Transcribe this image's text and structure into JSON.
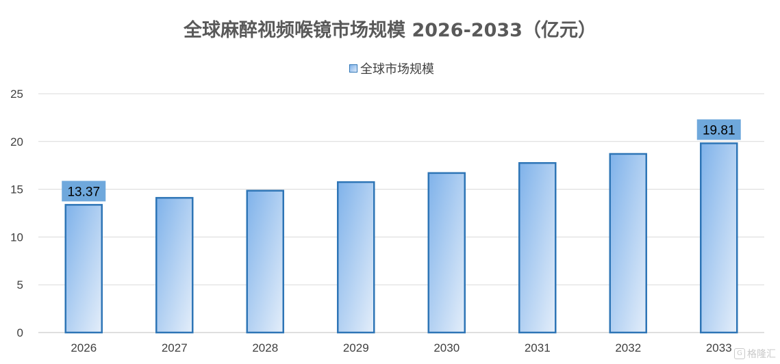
{
  "chart_data": {
    "type": "bar",
    "title": "全球麻醉视频喉镜市场规模 2026-2033（亿元）",
    "categories": [
      "2026",
      "2027",
      "2028",
      "2029",
      "2030",
      "2031",
      "2032",
      "2033"
    ],
    "series": [
      {
        "name": "全球市场规模",
        "values": [
          13.37,
          14.1,
          14.85,
          15.75,
          16.7,
          17.75,
          18.7,
          19.81
        ]
      }
    ],
    "data_labels": [
      {
        "category": "2026",
        "text": "13.37"
      },
      {
        "category": "2033",
        "text": "19.81"
      }
    ],
    "ylim": [
      0,
      25
    ],
    "yticks": [
      "0",
      "5",
      "10",
      "15",
      "20",
      "25"
    ],
    "grid": true,
    "legend_position": "top-center",
    "colors": {
      "bar_border": "#2e75b6",
      "bar_fill_start": "#7fb2ea",
      "bar_fill_end": "#dde9f8",
      "label_bg": "#6fa8dc",
      "grid": "#d9d9d9"
    }
  },
  "watermark": {
    "icon": "gelonghui-logo-icon",
    "text": "格隆汇"
  }
}
